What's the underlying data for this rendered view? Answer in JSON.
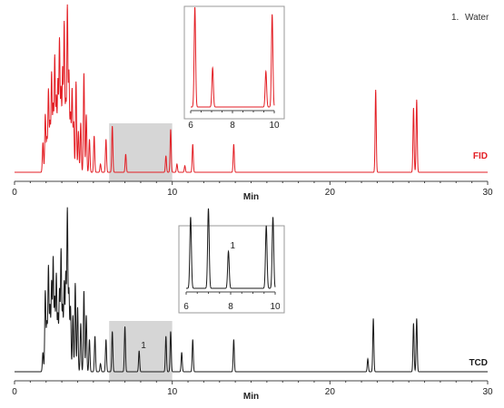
{
  "legend": {
    "number": "1.",
    "label": "Water"
  },
  "colors": {
    "fid": "#e31e24",
    "tcd": "#1a1a1a",
    "zoom": "#c8c8c8",
    "axis": "#444444"
  },
  "chart_data": [
    {
      "type": "line",
      "name": "FID",
      "detector_label": "FID",
      "xlabel": "Min",
      "xlim": [
        0,
        30
      ],
      "xticks": [
        0,
        10,
        20,
        30
      ],
      "highlight": [
        6,
        10
      ],
      "peaks": [
        [
          1.8,
          0.18
        ],
        [
          1.95,
          0.35
        ],
        [
          2.05,
          0.2
        ],
        [
          2.15,
          0.5
        ],
        [
          2.25,
          0.3
        ],
        [
          2.35,
          0.6
        ],
        [
          2.45,
          0.4
        ],
        [
          2.55,
          0.7
        ],
        [
          2.65,
          0.45
        ],
        [
          2.75,
          0.55
        ],
        [
          2.85,
          0.8
        ],
        [
          2.95,
          0.5
        ],
        [
          3.05,
          0.62
        ],
        [
          3.15,
          0.9
        ],
        [
          3.25,
          0.42
        ],
        [
          3.35,
          1.0
        ],
        [
          3.45,
          0.6
        ],
        [
          3.55,
          0.35
        ],
        [
          3.65,
          0.5
        ],
        [
          3.75,
          0.3
        ],
        [
          3.9,
          0.55
        ],
        [
          4.05,
          0.25
        ],
        [
          4.2,
          0.3
        ],
        [
          4.4,
          0.6
        ],
        [
          4.55,
          0.35
        ],
        [
          4.75,
          0.2
        ],
        [
          5.05,
          0.22
        ],
        [
          5.45,
          0.05
        ],
        [
          5.8,
          0.2
        ],
        [
          6.2,
          0.28
        ],
        [
          7.05,
          0.11
        ],
        [
          9.6,
          0.1
        ],
        [
          9.9,
          0.26
        ],
        [
          10.3,
          0.05
        ],
        [
          10.8,
          0.04
        ],
        [
          11.3,
          0.17
        ],
        [
          13.9,
          0.17
        ],
        [
          22.9,
          0.5
        ],
        [
          25.3,
          0.39
        ],
        [
          25.5,
          0.44
        ]
      ],
      "inset": {
        "xlim": [
          6,
          10
        ],
        "xticks": [
          6,
          8,
          10
        ],
        "annotation": null
      }
    },
    {
      "type": "line",
      "name": "TCD",
      "detector_label": "TCD",
      "xlabel": "Min",
      "xlim": [
        0,
        30
      ],
      "xticks": [
        0,
        10,
        20,
        30
      ],
      "highlight": [
        6,
        10
      ],
      "peaks": [
        [
          1.8,
          0.12
        ],
        [
          1.95,
          0.5
        ],
        [
          2.05,
          0.3
        ],
        [
          2.15,
          0.65
        ],
        [
          2.25,
          0.4
        ],
        [
          2.35,
          0.55
        ],
        [
          2.45,
          0.7
        ],
        [
          2.55,
          0.45
        ],
        [
          2.65,
          0.6
        ],
        [
          2.75,
          0.35
        ],
        [
          2.85,
          0.5
        ],
        [
          2.95,
          0.75
        ],
        [
          3.05,
          0.4
        ],
        [
          3.15,
          0.55
        ],
        [
          3.25,
          0.6
        ],
        [
          3.35,
          1.0
        ],
        [
          3.45,
          0.5
        ],
        [
          3.55,
          0.4
        ],
        [
          3.7,
          0.35
        ],
        [
          3.85,
          0.55
        ],
        [
          4.0,
          0.4
        ],
        [
          4.2,
          0.3
        ],
        [
          4.4,
          0.5
        ],
        [
          4.55,
          0.35
        ],
        [
          4.75,
          0.2
        ],
        [
          5.1,
          0.22
        ],
        [
          5.45,
          0.05
        ],
        [
          5.8,
          0.2
        ],
        [
          6.2,
          0.25
        ],
        [
          7.0,
          0.28
        ],
        [
          7.9,
          0.13
        ],
        [
          9.6,
          0.22
        ],
        [
          9.9,
          0.25
        ],
        [
          10.6,
          0.12
        ],
        [
          11.3,
          0.2
        ],
        [
          13.9,
          0.2
        ],
        [
          22.4,
          0.08
        ],
        [
          22.75,
          0.33
        ],
        [
          25.3,
          0.3
        ],
        [
          25.5,
          0.33
        ]
      ],
      "annotations": [
        {
          "label": "1",
          "x": 7.9
        }
      ],
      "inset": {
        "xlim": [
          6,
          10
        ],
        "xticks": [
          6,
          8,
          10
        ],
        "annotation": {
          "label": "1",
          "x": 7.9
        }
      }
    }
  ]
}
